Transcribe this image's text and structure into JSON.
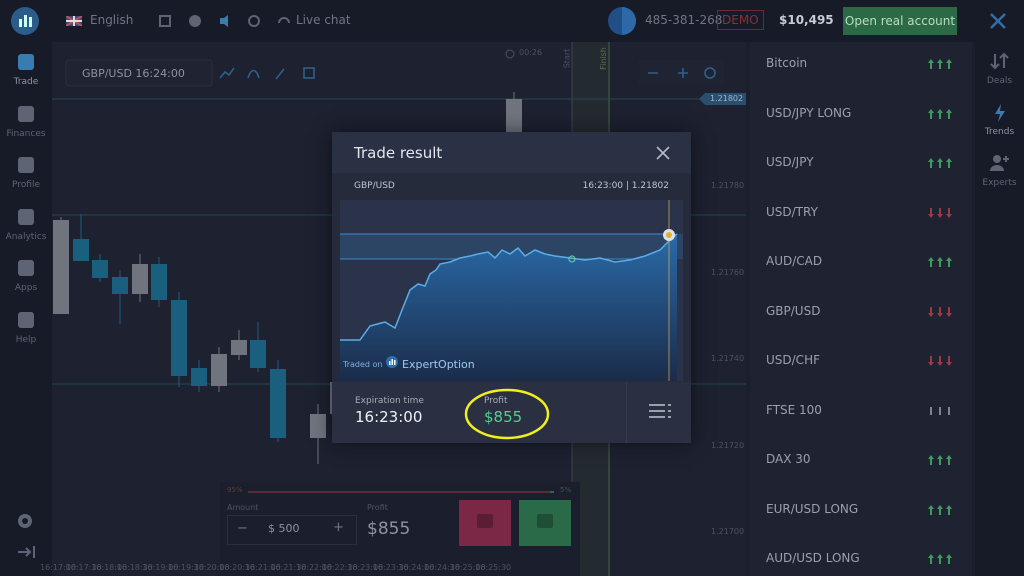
{
  "top_bar": {
    "language": "English",
    "live_chat": "Live chat",
    "account_id": "485-381-268",
    "mode": "DEMO",
    "balance": "$10,495",
    "open_account": "Open real account"
  },
  "sidebar": [
    "Trade",
    "Finances",
    "Profile",
    "Analytics",
    "Apps",
    "Help"
  ],
  "chart": {
    "asset": "GBP/USD 16:24:00",
    "timer": "00:26",
    "start": "Start",
    "finish": "Finish",
    "current_price": "1.21802",
    "price_labels": [
      "1.21780",
      "1.21760",
      "1.21740",
      "1.21720",
      "1.21700"
    ],
    "time_labels": [
      "16:17:00",
      "16:17:30",
      "16:18:00",
      "16:18:30",
      "16:19:00",
      "16:19:30",
      "16:20:00",
      "16:20:30",
      "16:21:00",
      "16:21:30",
      "16:22:00",
      "16:22:30",
      "16:23:00",
      "16:23:30",
      "16:24:00",
      "16:24:30",
      "16:25:00",
      "16:25:30"
    ]
  },
  "trade_result": {
    "title": "Trade result",
    "asset": "GBP/USD",
    "time_price": "16:23:00 | 1.21802",
    "traded_on": "Traded on",
    "brand": "ExpertOption",
    "expiration_label": "Expiration time",
    "expiration": "16:23:00",
    "profit_label": "Profit",
    "profit": "$855"
  },
  "trade_panel": {
    "left_percent": "95%",
    "right_percent": "5%",
    "amount_label": "Amount",
    "amount": "$ 500",
    "minus": "−",
    "plus": "+",
    "profit_label": "Profit",
    "profit": "$855"
  },
  "assets": [
    {
      "name": "Bitcoin",
      "trend": "up"
    },
    {
      "name": "USD/JPY LONG",
      "trend": "up"
    },
    {
      "name": "USD/JPY",
      "trend": "up"
    },
    {
      "name": "USD/TRY",
      "trend": "down"
    },
    {
      "name": "AUD/CAD",
      "trend": "up"
    },
    {
      "name": "GBP/USD",
      "trend": "down"
    },
    {
      "name": "USD/CHF",
      "trend": "down"
    },
    {
      "name": "FTSE 100",
      "trend": "flat"
    },
    {
      "name": "DAX 30",
      "trend": "up"
    },
    {
      "name": "EUR/USD LONG",
      "trend": "up"
    },
    {
      "name": "AUD/USD LONG",
      "trend": "up"
    }
  ],
  "right_rail": [
    "Deals",
    "Trends",
    "Experts"
  ]
}
